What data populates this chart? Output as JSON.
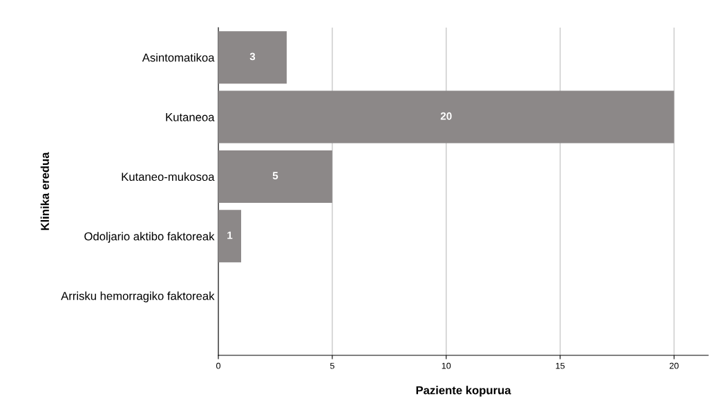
{
  "chart_data": {
    "type": "bar",
    "orientation": "horizontal",
    "categories": [
      "Asintomatikoa",
      "Kutaneoa",
      "Kutaneo-mukosoa",
      "Odoljario aktibo faktoreak",
      "Arrisku hemorragiko faktoreak"
    ],
    "values": [
      3,
      20,
      5,
      1,
      0
    ],
    "value_labels": [
      "3",
      "20",
      "5",
      "1",
      null
    ],
    "color": "#8c8888",
    "xlim": [
      0,
      21.5
    ],
    "xticks": [
      0,
      5,
      10,
      15,
      20
    ],
    "xlabel": "Paziente kopurua",
    "ylabel": "Klinika eredua",
    "grid": "x"
  }
}
